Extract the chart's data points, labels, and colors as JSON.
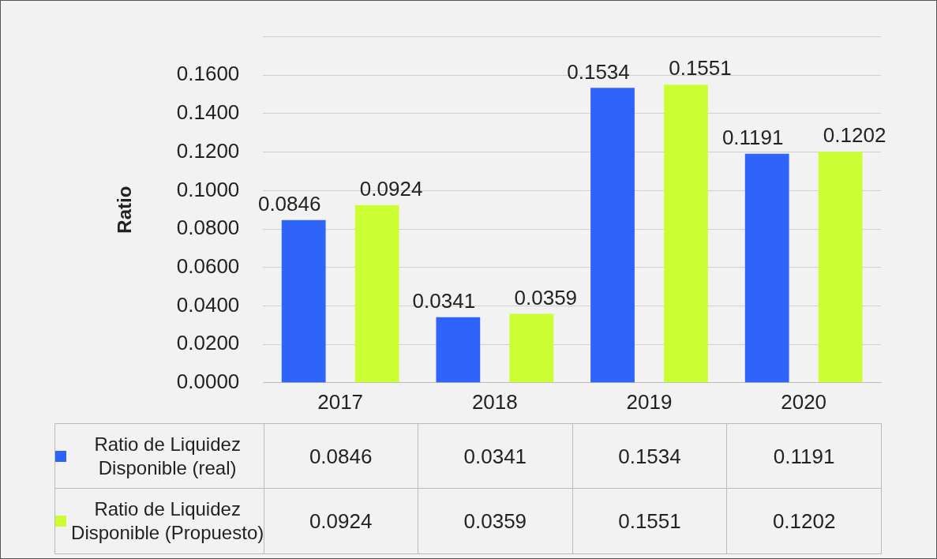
{
  "chart_data": {
    "type": "bar",
    "ylabel": "Ratio",
    "categories": [
      "2017",
      "2018",
      "2019",
      "2020"
    ],
    "series": [
      {
        "name": "Ratio de Liquidez Disponible (real)",
        "color": "#2e64fa",
        "values": [
          0.0846,
          0.0341,
          0.1534,
          0.1191
        ],
        "value_labels": [
          "0.0846",
          "0.0341",
          "0.1534",
          "0.1191"
        ]
      },
      {
        "name": "Ratio de Liquidez Disponible (Propuesto)",
        "color": "#ccff33",
        "values": [
          0.0924,
          0.0359,
          0.1551,
          0.1202
        ],
        "value_labels": [
          "0.0924",
          "0.0359",
          "0.1551",
          "0.1202"
        ]
      }
    ],
    "ylim": [
      0,
      0.18
    ],
    "yticks": [
      {
        "value": 0,
        "label": "0.0000"
      },
      {
        "value": 0.02,
        "label": "0.0200"
      },
      {
        "value": 0.04,
        "label": "0.0400"
      },
      {
        "value": 0.06,
        "label": "0.0600"
      },
      {
        "value": 0.08,
        "label": "0.0800"
      },
      {
        "value": 0.1,
        "label": "0.1000"
      },
      {
        "value": 0.12,
        "label": "0.1200"
      },
      {
        "value": 0.14,
        "label": "0.1400"
      },
      {
        "value": 0.16,
        "label": "0.1600"
      },
      {
        "value": 0.18,
        "label": null
      }
    ],
    "grid": "y",
    "legend": "bottom"
  }
}
